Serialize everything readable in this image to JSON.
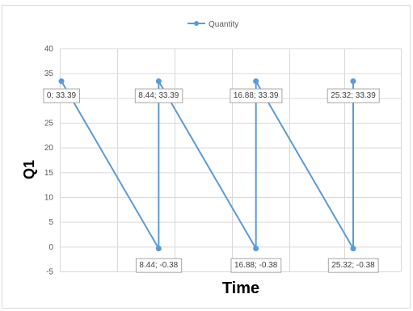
{
  "chart_data": {
    "type": "line",
    "title": "",
    "xlabel": "Time",
    "ylabel": "Q1",
    "ylim": [
      -5,
      40
    ],
    "yticks": [
      "40",
      "35",
      "30",
      "25",
      "20",
      "15",
      "10",
      "5",
      "0",
      "-5"
    ],
    "xlim": [
      0,
      30
    ],
    "grid": true,
    "legend": {
      "position": "top-center",
      "entries": [
        "Quantity"
      ]
    },
    "colors": {
      "series": "#5b9bd5",
      "grid": "#d9d9d9",
      "label_border": "#a6a6a6"
    },
    "series": [
      {
        "name": "Quantity",
        "points": [
          {
            "x": 0,
            "y": 33.39,
            "label": "0; 33.39"
          },
          {
            "x": 8.44,
            "y": -0.38,
            "label": "8.44; -0.38"
          },
          {
            "x": 8.44,
            "y": 33.39,
            "label": "8.44; 33.39"
          },
          {
            "x": 16.88,
            "y": -0.38,
            "label": "16.88; -0.38"
          },
          {
            "x": 16.88,
            "y": 33.39,
            "label": "16.88; 33.39"
          },
          {
            "x": 25.32,
            "y": -0.38,
            "label": "25.32; -0.38"
          },
          {
            "x": 25.32,
            "y": 33.39,
            "label": "25.32; 33.39"
          }
        ]
      }
    ]
  }
}
